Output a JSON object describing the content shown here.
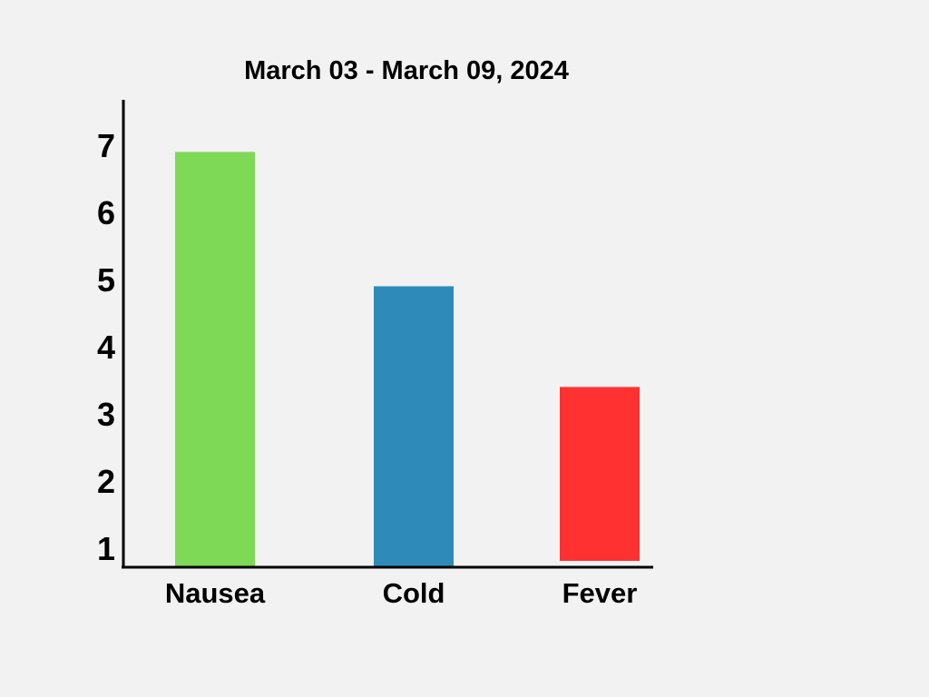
{
  "chart_data": {
    "type": "bar",
    "title": "March 03 - March 09, 2024",
    "xlabel": "",
    "ylabel": "",
    "categories": [
      "Nausea",
      "Cold",
      "Fever"
    ],
    "values": [
      6.9,
      4.9,
      3.4
    ],
    "colors": [
      "#7ed957",
      "#2e8bb9",
      "#ff3131"
    ],
    "y_ticks": [
      "1",
      "2",
      "3",
      "4",
      "5",
      "6",
      "7"
    ],
    "ylim": [
      0.7,
      7.6
    ],
    "grid": false,
    "legend": "none"
  }
}
